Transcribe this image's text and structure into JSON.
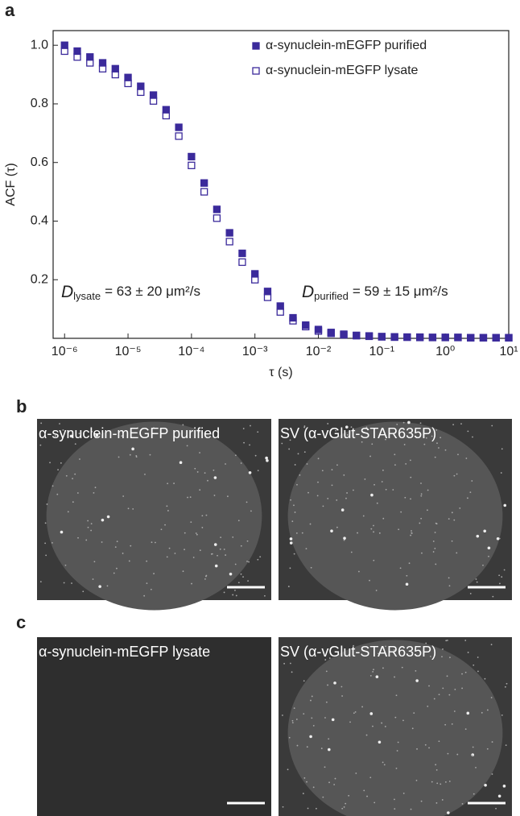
{
  "chart_data": {
    "type": "scatter",
    "panel_label": "a",
    "ylabel": "ACF (τ)",
    "xlabel": "τ (s)",
    "xscale": "log",
    "xlim": [
      6.6e-07,
      10
    ],
    "ylim": [
      0,
      1.05
    ],
    "xticks": [
      {
        "value": 1e-06,
        "label": "10⁻⁶"
      },
      {
        "value": 1e-05,
        "label": "10⁻⁵"
      },
      {
        "value": 0.0001,
        "label": "10⁻⁴"
      },
      {
        "value": 0.001,
        "label": "10⁻³"
      },
      {
        "value": 0.01,
        "label": "10⁻²"
      },
      {
        "value": 0.1,
        "label": "10⁻¹"
      },
      {
        "value": 1,
        "label": "10⁰"
      },
      {
        "value": 10,
        "label": "10¹"
      }
    ],
    "yticks": [
      0.2,
      0.4,
      0.6,
      0.8,
      {
        "value": 1,
        "label": "1.0"
      }
    ],
    "legend": "upper right",
    "x": [
      1e-06,
      1.585e-06,
      2.512e-06,
      3.981e-06,
      6.31e-06,
      1e-05,
      1.585e-05,
      2.512e-05,
      3.981e-05,
      6.31e-05,
      0.0001,
      0.0001585,
      0.0002512,
      0.0003981,
      0.000631,
      0.001,
      0.001585,
      0.002512,
      0.003981,
      0.00631,
      0.01,
      0.01585,
      0.02512,
      0.03981,
      0.0631,
      0.1,
      0.1585,
      0.2512,
      0.3981,
      0.631,
      1,
      1.585,
      2.512,
      3.981,
      6.31,
      10
    ],
    "series": [
      {
        "name": "α-synuclein-mEGFP purified",
        "color": "#3b2a9b",
        "marker": "filled",
        "values": [
          1.0,
          0.98,
          0.96,
          0.94,
          0.92,
          0.89,
          0.86,
          0.83,
          0.78,
          0.72,
          0.62,
          0.53,
          0.44,
          0.36,
          0.29,
          0.22,
          0.16,
          0.11,
          0.07,
          0.045,
          0.03,
          0.02,
          0.014,
          0.01,
          0.008,
          0.006,
          0.005,
          0.004,
          0.004,
          0.003,
          0.003,
          0.003,
          0.002,
          0.002,
          0.002,
          0.002
        ]
      },
      {
        "name": "α-synuclein-mEGFP lysate",
        "color": "#3b2a9b",
        "marker": "open",
        "values": [
          0.98,
          0.96,
          0.94,
          0.92,
          0.9,
          0.87,
          0.84,
          0.81,
          0.76,
          0.69,
          0.59,
          0.5,
          0.41,
          0.33,
          0.26,
          0.2,
          0.14,
          0.09,
          0.06,
          0.04,
          0.025,
          0.017,
          0.012,
          0.009,
          0.007,
          0.005,
          0.004,
          0.004,
          0.003,
          0.003,
          0.003,
          0.003,
          0.002,
          0.002,
          0.002,
          0.002
        ]
      }
    ],
    "annotations": [
      {
        "symbol": "D",
        "subscript": "lysate",
        "text": "= 63 ± 20 μm²/s"
      },
      {
        "symbol": "D",
        "subscript": "purified",
        "text": "= 59 ± 15 μm²/s"
      }
    ]
  },
  "panels": [
    {
      "label": "b",
      "images": [
        {
          "title": "α-synuclein-mEGFP purified"
        },
        {
          "title": "SV (α-vGlut-STAR635P)"
        }
      ]
    },
    {
      "label": "c",
      "images": [
        {
          "title": "α-synuclein-mEGFP lysate"
        },
        {
          "title": "SV (α-vGlut-STAR635P)"
        }
      ]
    }
  ]
}
